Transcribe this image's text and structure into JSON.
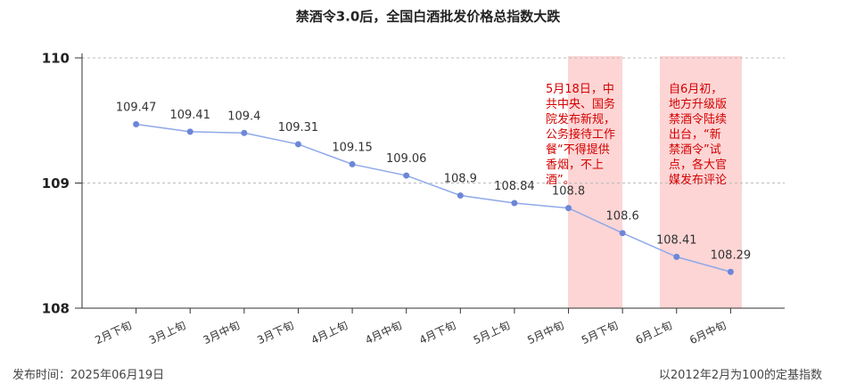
{
  "chart_data": {
    "type": "line",
    "title": "禁酒令3.0后，全国白酒批发价格总指数大跌",
    "categories": [
      "2月下旬",
      "3月上旬",
      "3月中旬",
      "3月下旬",
      "4月上旬",
      "4月中旬",
      "4月下旬",
      "5月上旬",
      "5月中旬",
      "5月下旬",
      "6月上旬",
      "6月中旬"
    ],
    "values": [
      109.47,
      109.41,
      109.4,
      109.31,
      109.15,
      109.06,
      108.9,
      108.84,
      108.8,
      108.6,
      108.41,
      108.29
    ],
    "color": "#8fa8e8",
    "ylim": [
      108,
      110
    ],
    "yticks": [
      108,
      109,
      110
    ],
    "grid": true,
    "annotations": [
      "5月18日，中共中央、国务院发布新规，公务接待工作餐“不得提供香烟，不上酒”。",
      "自6月初，地方升级版禁酒令陆续出台，“新禁酒令”试点，各大官媒发布评论"
    ],
    "footer_left": "发布时间：2025年06月19日",
    "footer_right": "以2012年2月为100的定基指数"
  }
}
